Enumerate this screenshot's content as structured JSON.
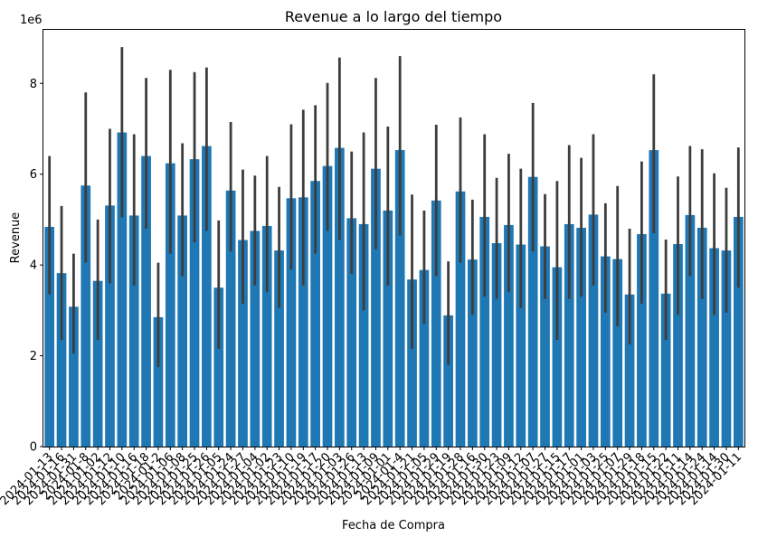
{
  "chart_data": {
    "type": "bar",
    "title": "Revenue a lo largo del tiempo",
    "xlabel": "Fecha de Compra",
    "ylabel": "Revenue",
    "y_offset_label": "1e6",
    "ylim": [
      0,
      9.2
    ],
    "yticks": [
      0,
      2,
      4,
      6,
      8
    ],
    "grid": false,
    "legend": "none",
    "bar_color": "#1f77b4",
    "errorbar_color": "#3d3d3d",
    "categories": [
      "2024-01-13",
      "2024-01-16",
      "2024-01-31",
      "2024-01-8",
      "2024-01-02",
      "2024-01-12",
      "2024-01-10",
      "2024-01-16",
      "2024-01-18",
      "2024-01-2",
      "2024-01-06",
      "2024-01-08",
      "2024-01-25",
      "2024-01-26",
      "2024-01-05",
      "2024-01-24",
      "2024-01-27",
      "2024-01-04",
      "2024-01-02",
      "2024-01-23",
      "2024-01-10",
      "2024-01-19",
      "2024-01-17",
      "2024-01-20",
      "2024-01-03",
      "2024-01-26",
      "2024-01-13",
      "2024-01-09",
      "2024-01-01",
      "2024-01-4",
      "2024-01-21",
      "2024-01-05",
      "2024-01-29",
      "2024-01-19",
      "2024-01-28",
      "2024-01-16",
      "2024-01-30",
      "2024-01-23",
      "2024-01-09",
      "2024-01-12",
      "2024-01-07",
      "2024-01-27",
      "2024-01-15",
      "2024-01-17",
      "2024-01-01",
      "2024-01-03",
      "2024-01-25",
      "2024-01-07",
      "2024-01-29",
      "2024-01-18",
      "2024-01-15",
      "2024-01-22",
      "2024-01-11",
      "2024-01-14",
      "2024-01-24",
      "2024-01-14",
      "2024-01-30",
      "2024-01-11"
    ],
    "values": [
      4.84,
      3.82,
      3.08,
      5.75,
      3.65,
      5.31,
      6.92,
      5.09,
      6.4,
      2.85,
      6.24,
      5.09,
      6.33,
      6.62,
      3.5,
      5.64,
      4.55,
      4.75,
      4.86,
      4.32,
      5.47,
      5.49,
      5.85,
      6.18,
      6.58,
      5.03,
      4.9,
      6.12,
      5.2,
      6.53,
      3.68,
      3.89,
      5.42,
      2.89,
      5.62,
      4.12,
      5.06,
      4.48,
      4.88,
      4.45,
      5.94,
      4.41,
      3.95,
      4.9,
      4.82,
      5.11,
      4.19,
      4.13,
      3.35,
      4.68,
      6.53,
      3.37,
      4.46,
      5.1,
      4.82,
      4.37,
      4.32,
      5.06
    ],
    "ci_low": [
      3.35,
      2.35,
      2.05,
      4.05,
      2.35,
      3.6,
      5.05,
      3.55,
      4.8,
      1.75,
      4.25,
      3.75,
      4.5,
      4.75,
      2.15,
      4.3,
      3.15,
      3.55,
      3.4,
      3.05,
      3.9,
      3.55,
      4.25,
      4.75,
      4.55,
      3.8,
      3.0,
      4.35,
      3.55,
      4.65,
      2.15,
      2.7,
      3.75,
      1.8,
      4.05,
      2.9,
      3.3,
      3.25,
      3.4,
      3.05,
      4.3,
      3.25,
      2.35,
      3.25,
      3.3,
      3.55,
      2.95,
      2.65,
      2.25,
      3.15,
      4.7,
      2.35,
      2.9,
      3.75,
      3.25,
      2.9,
      2.95,
      3.5
    ],
    "ci_high": [
      6.4,
      5.3,
      4.25,
      7.8,
      5.0,
      7.0,
      8.8,
      6.88,
      8.12,
      4.05,
      8.3,
      6.68,
      8.25,
      8.35,
      4.98,
      7.15,
      6.1,
      5.97,
      6.4,
      5.72,
      7.1,
      7.42,
      7.52,
      8.01,
      8.57,
      6.5,
      6.92,
      8.12,
      7.05,
      8.6,
      5.55,
      5.2,
      7.09,
      4.08,
      7.25,
      5.44,
      6.88,
      5.92,
      6.45,
      6.12,
      7.57,
      5.56,
      5.85,
      6.64,
      6.36,
      6.88,
      5.36,
      5.74,
      4.8,
      6.28,
      8.2,
      4.56,
      5.95,
      6.62,
      6.55,
      6.02,
      5.7,
      6.59
    ]
  }
}
